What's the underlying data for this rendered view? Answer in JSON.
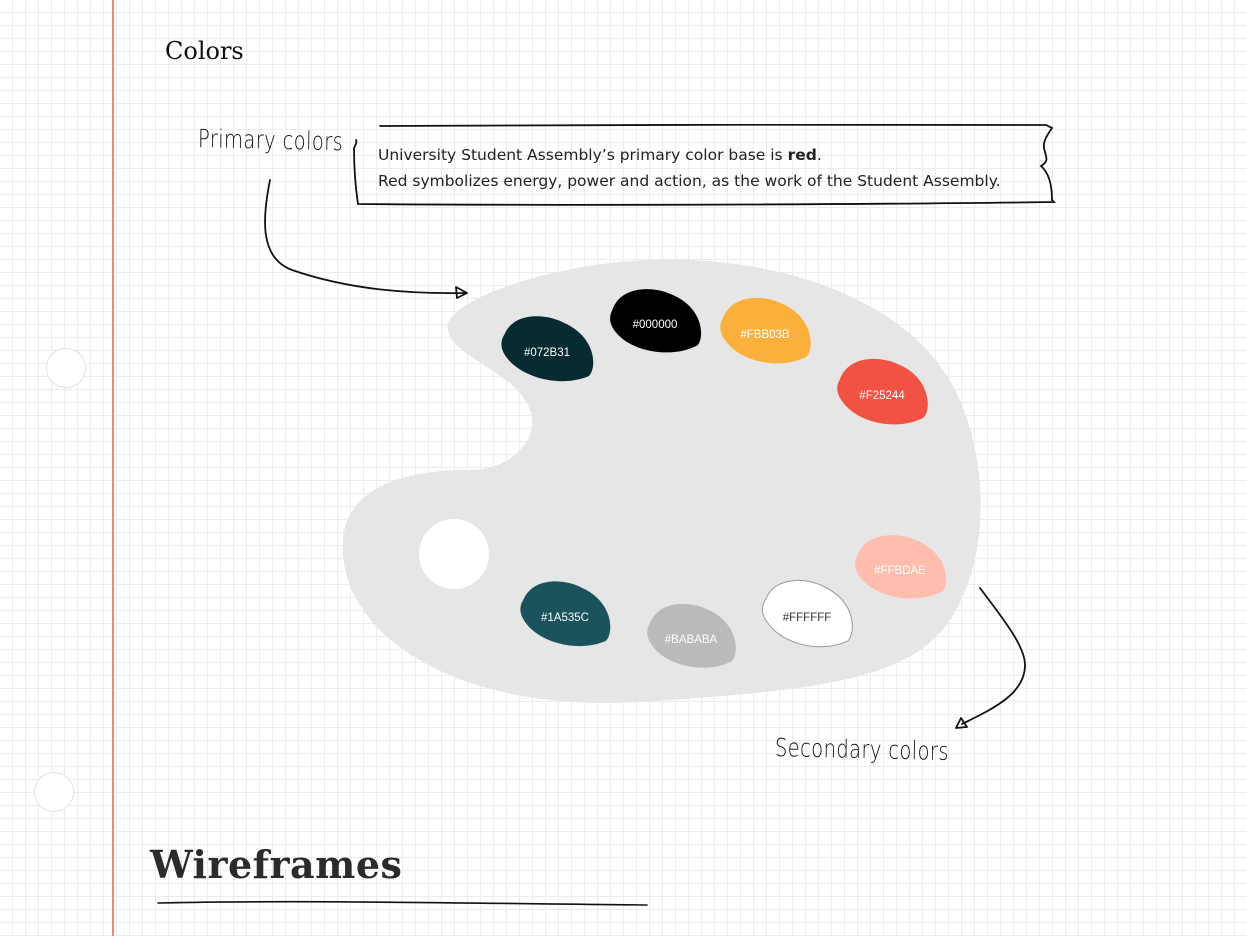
{
  "section": {
    "title": "Colors"
  },
  "primary": {
    "label": "Primary colors"
  },
  "secondary": {
    "label": "Secondary colors"
  },
  "note": {
    "line1_prefix": "University Student Assembly’s primary color base is ",
    "line1_bold": "red",
    "line1_suffix": ".",
    "line2": "Red symbolizes energy, power and action, as the work of the Student Assembly."
  },
  "palette": {
    "base_color": "#E6E6E6",
    "swatches": [
      {
        "label": "#072B31",
        "color": "#072B31",
        "text_color": "#FFFFFF"
      },
      {
        "label": "#000000",
        "color": "#000000",
        "text_color": "#FFFFFF"
      },
      {
        "label": "#FBB03B",
        "color": "#FBB03B",
        "text_color": "#FFFFFF"
      },
      {
        "label": "#F25244",
        "color": "#F25244",
        "text_color": "#FFFFFF"
      },
      {
        "label": "#1A535C",
        "color": "#1A535C",
        "text_color": "#FFFFFF"
      },
      {
        "label": "#BABABA",
        "color": "#BABABA",
        "text_color": "#FFFFFF"
      },
      {
        "label": "#FFFFFF",
        "color": "#FFFFFF",
        "text_color": "#333333"
      },
      {
        "label": "#FFBDAE",
        "color": "#FFBDAE",
        "text_color": "#FFFFFF"
      }
    ]
  },
  "heading2": {
    "title": "Wireframes"
  },
  "colors": {
    "margin_line": "#F2866F",
    "ink": "#111111"
  }
}
